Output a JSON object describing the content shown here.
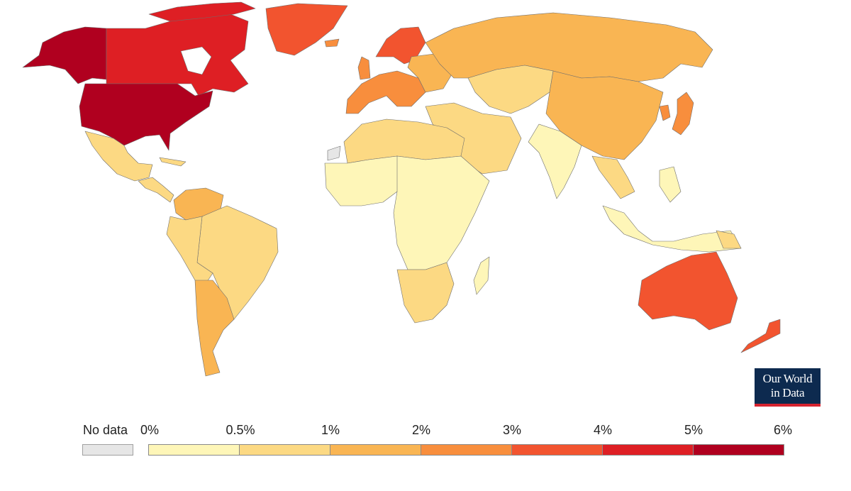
{
  "legend": {
    "no_data_label": "No data",
    "no_data_color": "#e6e6e6",
    "thresholds": [
      "0%",
      "0.5%",
      "1%",
      "2%",
      "3%",
      "4%",
      "5%",
      "6%"
    ],
    "colors": [
      "#fef6b8",
      "#fcd983",
      "#f9b553",
      "#f88e3d",
      "#f2542f",
      "#de1f24",
      "#b0001f"
    ]
  },
  "logo": {
    "line1": "Our World",
    "line2": "in Data"
  },
  "chart_data": {
    "type": "choropleth",
    "scale": "binned",
    "bins": [
      "0%-0.5%",
      "0.5%-1%",
      "1%-2%",
      "2%-3%",
      "3%-4%",
      "4%-5%",
      "5%-6%"
    ]
  }
}
